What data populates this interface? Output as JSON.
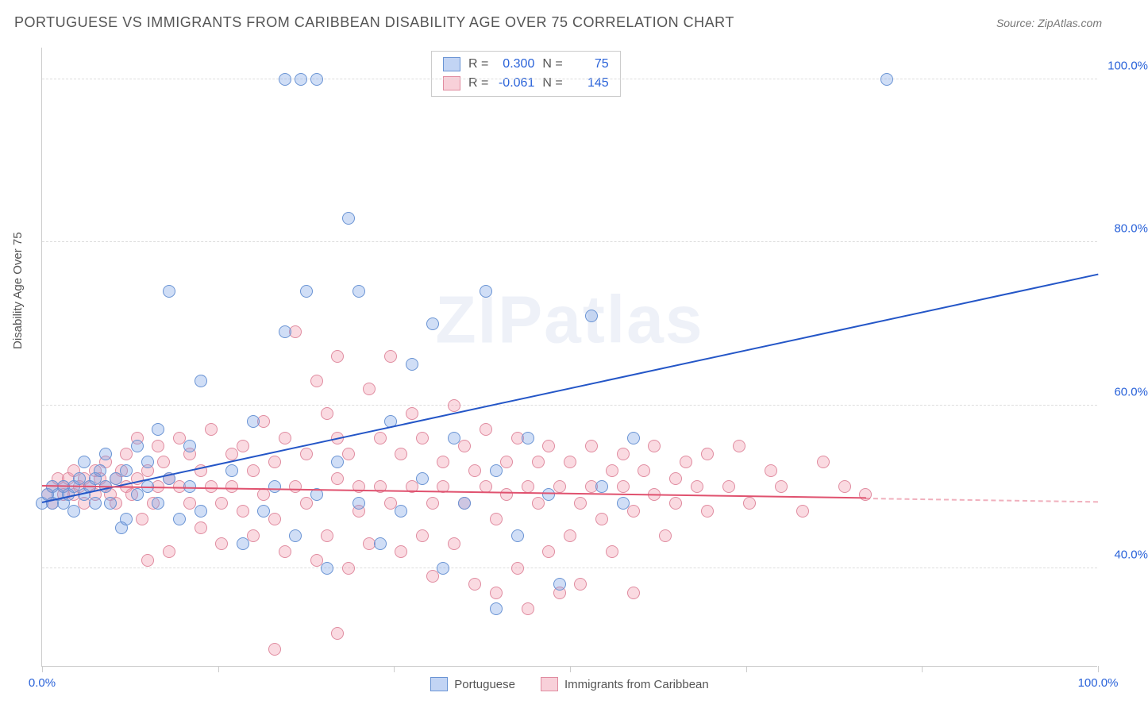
{
  "title": "PORTUGUESE VS IMMIGRANTS FROM CARIBBEAN DISABILITY AGE OVER 75 CORRELATION CHART",
  "source": "Source: ZipAtlas.com",
  "y_axis_label": "Disability Age Over 75",
  "watermark": "ZIPatlas",
  "chart": {
    "type": "scatter",
    "xlim": [
      0,
      100
    ],
    "ylim": [
      28,
      104
    ],
    "x_ticks": [
      0,
      16.7,
      33.3,
      50,
      66.7,
      83.3,
      100
    ],
    "x_tick_labels": {
      "0": "0.0%",
      "100": "100.0%"
    },
    "y_gridlines": [
      40,
      60,
      80,
      100
    ],
    "y_tick_labels": {
      "40": "40.0%",
      "60": "60.0%",
      "80": "80.0%",
      "100": "100.0%"
    },
    "background_color": "#ffffff",
    "grid_color": "#dddddd",
    "tick_label_color": "#2962d9",
    "point_radius": 8,
    "series": [
      {
        "name": "Portuguese",
        "fill": "rgba(120,160,230,0.35)",
        "stroke": "#6a94d4",
        "r": 0.3,
        "n": 75,
        "trend": {
          "x1": 0,
          "y1": 48,
          "x2": 100,
          "y2": 76,
          "color": "#2456c7",
          "width": 2,
          "dash_from_x": 100
        },
        "points": [
          [
            0,
            48
          ],
          [
            0.5,
            49
          ],
          [
            1,
            48
          ],
          [
            1,
            50
          ],
          [
            1.5,
            49
          ],
          [
            2,
            48
          ],
          [
            2,
            50
          ],
          [
            2.5,
            49
          ],
          [
            3,
            50
          ],
          [
            3,
            47
          ],
          [
            3.5,
            51
          ],
          [
            4,
            49
          ],
          [
            4,
            53
          ],
          [
            4.5,
            50
          ],
          [
            5,
            48
          ],
          [
            5,
            51
          ],
          [
            5.5,
            52
          ],
          [
            6,
            50
          ],
          [
            6,
            54
          ],
          [
            6.5,
            48
          ],
          [
            7,
            51
          ],
          [
            7.5,
            45
          ],
          [
            8,
            46
          ],
          [
            8,
            52
          ],
          [
            9,
            49
          ],
          [
            9,
            55
          ],
          [
            10,
            50
          ],
          [
            10,
            53
          ],
          [
            11,
            48
          ],
          [
            11,
            57
          ],
          [
            12,
            74
          ],
          [
            12,
            51
          ],
          [
            13,
            46
          ],
          [
            14,
            50
          ],
          [
            14,
            55
          ],
          [
            15,
            47
          ],
          [
            15,
            63
          ],
          [
            18,
            52
          ],
          [
            19,
            43
          ],
          [
            20,
            58
          ],
          [
            21,
            47
          ],
          [
            22,
            50
          ],
          [
            23,
            69
          ],
          [
            23,
            100
          ],
          [
            24,
            44
          ],
          [
            24.5,
            100
          ],
          [
            25,
            74
          ],
          [
            26,
            49
          ],
          [
            26,
            100
          ],
          [
            27,
            40
          ],
          [
            28,
            53
          ],
          [
            29,
            83
          ],
          [
            30,
            74
          ],
          [
            30,
            48
          ],
          [
            32,
            43
          ],
          [
            33,
            58
          ],
          [
            34,
            47
          ],
          [
            35,
            65
          ],
          [
            36,
            51
          ],
          [
            37,
            70
          ],
          [
            38,
            40
          ],
          [
            39,
            56
          ],
          [
            40,
            48
          ],
          [
            42,
            74
          ],
          [
            43,
            52
          ],
          [
            43,
            35
          ],
          [
            45,
            44
          ],
          [
            46,
            56
          ],
          [
            48,
            49
          ],
          [
            49,
            38
          ],
          [
            52,
            71
          ],
          [
            53,
            50
          ],
          [
            55,
            48
          ],
          [
            56,
            56
          ],
          [
            80,
            100
          ]
        ]
      },
      {
        "name": "Immigrants from Caribbean",
        "fill": "rgba(240,150,170,0.35)",
        "stroke": "#e08ca0",
        "r": -0.061,
        "n": 145,
        "trend": {
          "x1": 0,
          "y1": 50,
          "x2": 78,
          "y2": 48.5,
          "color": "#e0526f",
          "width": 2,
          "dash_from_x": 78
        },
        "points": [
          [
            0.5,
            49
          ],
          [
            1,
            50
          ],
          [
            1,
            48
          ],
          [
            1.5,
            51
          ],
          [
            2,
            49
          ],
          [
            2,
            50
          ],
          [
            2.5,
            51
          ],
          [
            3,
            49
          ],
          [
            3,
            52
          ],
          [
            3.5,
            50
          ],
          [
            4,
            51
          ],
          [
            4,
            48
          ],
          [
            4.5,
            50
          ],
          [
            5,
            52
          ],
          [
            5,
            49
          ],
          [
            5.5,
            51
          ],
          [
            6,
            50
          ],
          [
            6,
            53
          ],
          [
            6.5,
            49
          ],
          [
            7,
            51
          ],
          [
            7,
            48
          ],
          [
            7.5,
            52
          ],
          [
            8,
            50
          ],
          [
            8,
            54
          ],
          [
            8.5,
            49
          ],
          [
            9,
            51
          ],
          [
            9,
            56
          ],
          [
            9.5,
            46
          ],
          [
            10,
            41
          ],
          [
            10,
            52
          ],
          [
            10.5,
            48
          ],
          [
            11,
            55
          ],
          [
            11,
            50
          ],
          [
            11.5,
            53
          ],
          [
            12,
            42
          ],
          [
            12,
            51
          ],
          [
            13,
            50
          ],
          [
            13,
            56
          ],
          [
            14,
            48
          ],
          [
            14,
            54
          ],
          [
            15,
            52
          ],
          [
            15,
            45
          ],
          [
            16,
            50
          ],
          [
            16,
            57
          ],
          [
            17,
            48
          ],
          [
            17,
            43
          ],
          [
            18,
            54
          ],
          [
            18,
            50
          ],
          [
            19,
            47
          ],
          [
            19,
            55
          ],
          [
            20,
            44
          ],
          [
            20,
            52
          ],
          [
            21,
            49
          ],
          [
            21,
            58
          ],
          [
            22,
            46
          ],
          [
            22,
            53
          ],
          [
            23,
            42
          ],
          [
            23,
            56
          ],
          [
            24,
            50
          ],
          [
            24,
            69
          ],
          [
            25,
            48
          ],
          [
            25,
            54
          ],
          [
            26,
            41
          ],
          [
            26,
            63
          ],
          [
            27,
            59
          ],
          [
            27,
            44
          ],
          [
            28,
            51
          ],
          [
            28,
            56
          ],
          [
            28,
            66
          ],
          [
            29,
            40
          ],
          [
            29,
            54
          ],
          [
            30,
            50
          ],
          [
            30,
            47
          ],
          [
            31,
            62
          ],
          [
            31,
            43
          ],
          [
            32,
            56
          ],
          [
            32,
            50
          ],
          [
            33,
            48
          ],
          [
            33,
            66
          ],
          [
            34,
            42
          ],
          [
            34,
            54
          ],
          [
            35,
            50
          ],
          [
            35,
            59
          ],
          [
            36,
            44
          ],
          [
            36,
            56
          ],
          [
            37,
            48
          ],
          [
            37,
            39
          ],
          [
            38,
            53
          ],
          [
            38,
            50
          ],
          [
            39,
            60
          ],
          [
            39,
            43
          ],
          [
            40,
            55
          ],
          [
            40,
            48
          ],
          [
            41,
            38
          ],
          [
            41,
            52
          ],
          [
            42,
            50
          ],
          [
            42,
            57
          ],
          [
            43,
            46
          ],
          [
            43,
            37
          ],
          [
            44,
            53
          ],
          [
            44,
            49
          ],
          [
            45,
            40
          ],
          [
            45,
            56
          ],
          [
            46,
            50
          ],
          [
            46,
            35
          ],
          [
            47,
            48
          ],
          [
            47,
            53
          ],
          [
            48,
            42
          ],
          [
            48,
            55
          ],
          [
            49,
            37
          ],
          [
            49,
            50
          ],
          [
            50,
            53
          ],
          [
            50,
            44
          ],
          [
            51,
            48
          ],
          [
            51,
            38
          ],
          [
            52,
            55
          ],
          [
            52,
            50
          ],
          [
            53,
            46
          ],
          [
            54,
            52
          ],
          [
            54,
            42
          ],
          [
            55,
            50
          ],
          [
            55,
            54
          ],
          [
            56,
            47
          ],
          [
            56,
            37
          ],
          [
            57,
            52
          ],
          [
            58,
            49
          ],
          [
            58,
            55
          ],
          [
            59,
            44
          ],
          [
            60,
            51
          ],
          [
            60,
            48
          ],
          [
            61,
            53
          ],
          [
            62,
            50
          ],
          [
            63,
            47
          ],
          [
            63,
            54
          ],
          [
            65,
            50
          ],
          [
            66,
            55
          ],
          [
            67,
            48
          ],
          [
            69,
            52
          ],
          [
            70,
            50
          ],
          [
            72,
            47
          ],
          [
            74,
            53
          ],
          [
            76,
            50
          ],
          [
            78,
            49
          ],
          [
            28,
            32
          ],
          [
            22,
            30
          ]
        ]
      }
    ]
  },
  "legend_top": {
    "rows": [
      {
        "swatch_fill": "rgba(120,160,230,0.45)",
        "swatch_stroke": "#6a94d4",
        "r_label": "R =",
        "r_val": "0.300",
        "n_label": "N =",
        "n_val": "75"
      },
      {
        "swatch_fill": "rgba(240,150,170,0.45)",
        "swatch_stroke": "#e08ca0",
        "r_label": "R =",
        "r_val": "-0.061",
        "n_label": "N =",
        "n_val": "145"
      }
    ]
  },
  "legend_bottom": [
    {
      "swatch_fill": "rgba(120,160,230,0.45)",
      "swatch_stroke": "#6a94d4",
      "label": "Portuguese"
    },
    {
      "swatch_fill": "rgba(240,150,170,0.45)",
      "swatch_stroke": "#e08ca0",
      "label": "Immigrants from Caribbean"
    }
  ]
}
